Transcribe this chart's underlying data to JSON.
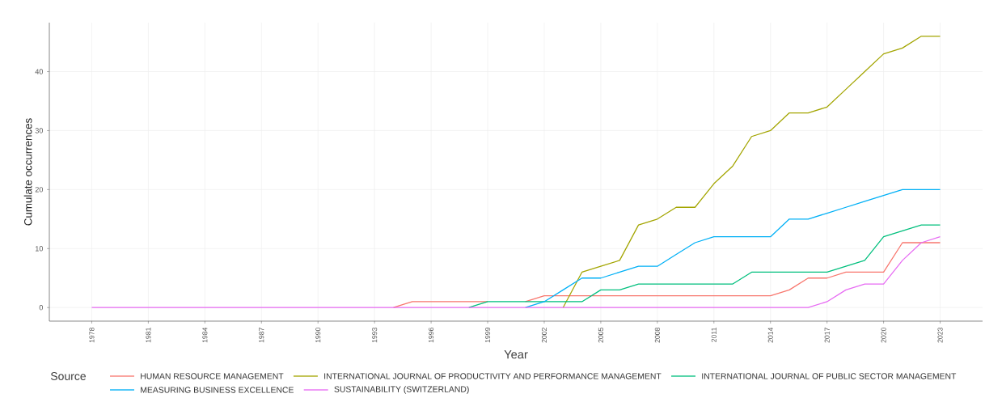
{
  "chart_data": {
    "type": "line",
    "xlabel": "Year",
    "ylabel": "Cumulate occurrences",
    "legend_title": "Source",
    "legend": "bottom",
    "grid": true,
    "x": [
      1978,
      1979,
      1980,
      1981,
      1982,
      1983,
      1984,
      1985,
      1986,
      1987,
      1988,
      1989,
      1990,
      1991,
      1992,
      1993,
      1994,
      1995,
      1996,
      1997,
      1998,
      1999,
      2000,
      2001,
      2002,
      2003,
      2004,
      2005,
      2006,
      2007,
      2008,
      2009,
      2010,
      2011,
      2012,
      2013,
      2014,
      2015,
      2016,
      2017,
      2018,
      2019,
      2020,
      2021,
      2022,
      2023
    ],
    "xlim": [
      1975.75,
      2025.25
    ],
    "xticks": [
      1978,
      1981,
      1984,
      1987,
      1990,
      1993,
      1996,
      1999,
      2002,
      2005,
      2008,
      2011,
      2014,
      2017,
      2020,
      2023
    ],
    "ylim": [
      -2.3,
      48.3
    ],
    "yticks": [
      0,
      10,
      20,
      30,
      40
    ],
    "series": [
      {
        "name": "HUMAN RESOURCE MANAGEMENT",
        "color": "#f8766d",
        "values": [
          null,
          null,
          null,
          null,
          null,
          null,
          null,
          null,
          null,
          null,
          null,
          null,
          null,
          null,
          null,
          null,
          0,
          1,
          1,
          1,
          1,
          1,
          null,
          1,
          2,
          2,
          2,
          2,
          2,
          2,
          2,
          2,
          2,
          2,
          2,
          2,
          2,
          3,
          5,
          5,
          6,
          6,
          6,
          11,
          11,
          11
        ]
      },
      {
        "name": "INTERNATIONAL JOURNAL OF PRODUCTIVITY AND PERFORMANCE MANAGEMENT",
        "color": "#a3a500",
        "values": [
          null,
          null,
          null,
          null,
          null,
          null,
          null,
          null,
          null,
          null,
          null,
          null,
          null,
          null,
          null,
          null,
          null,
          null,
          null,
          null,
          null,
          null,
          null,
          null,
          null,
          0,
          6,
          7,
          8,
          14,
          15,
          17,
          17,
          21,
          24,
          29,
          30,
          33,
          33,
          34,
          37,
          40,
          43,
          44,
          46,
          46
        ]
      },
      {
        "name": "INTERNATIONAL JOURNAL OF PUBLIC SECTOR MANAGEMENT",
        "color": "#00bf7d",
        "values": [
          null,
          null,
          null,
          null,
          null,
          null,
          null,
          null,
          null,
          null,
          null,
          null,
          null,
          null,
          null,
          null,
          null,
          null,
          null,
          null,
          0,
          1,
          1,
          1,
          1,
          1,
          1,
          3,
          3,
          4,
          4,
          4,
          4,
          4,
          4,
          6,
          6,
          6,
          6,
          6,
          7,
          8,
          12,
          13,
          14,
          14
        ]
      },
      {
        "name": "MEASURING BUSINESS EXCELLENCE",
        "color": "#00b0f6",
        "values": [
          null,
          null,
          null,
          null,
          null,
          null,
          null,
          null,
          null,
          null,
          null,
          null,
          null,
          null,
          null,
          null,
          null,
          null,
          null,
          null,
          null,
          null,
          null,
          0,
          1,
          3,
          5,
          5,
          6,
          7,
          7,
          9,
          11,
          12,
          12,
          12,
          12,
          15,
          15,
          16,
          17,
          18,
          19,
          20,
          20,
          20
        ]
      },
      {
        "name": "SUSTAINABILITY (SWITZERLAND)",
        "color": "#e76bf3",
        "values": [
          0,
          0,
          0,
          0,
          0,
          0,
          0,
          0,
          0,
          0,
          0,
          0,
          0,
          0,
          0,
          0,
          0,
          0,
          0,
          0,
          0,
          0,
          0,
          0,
          0,
          0,
          0,
          0,
          0,
          0,
          0,
          0,
          0,
          0,
          0,
          0,
          0,
          0,
          0,
          1,
          3,
          4,
          4,
          8,
          11,
          12
        ]
      }
    ]
  }
}
